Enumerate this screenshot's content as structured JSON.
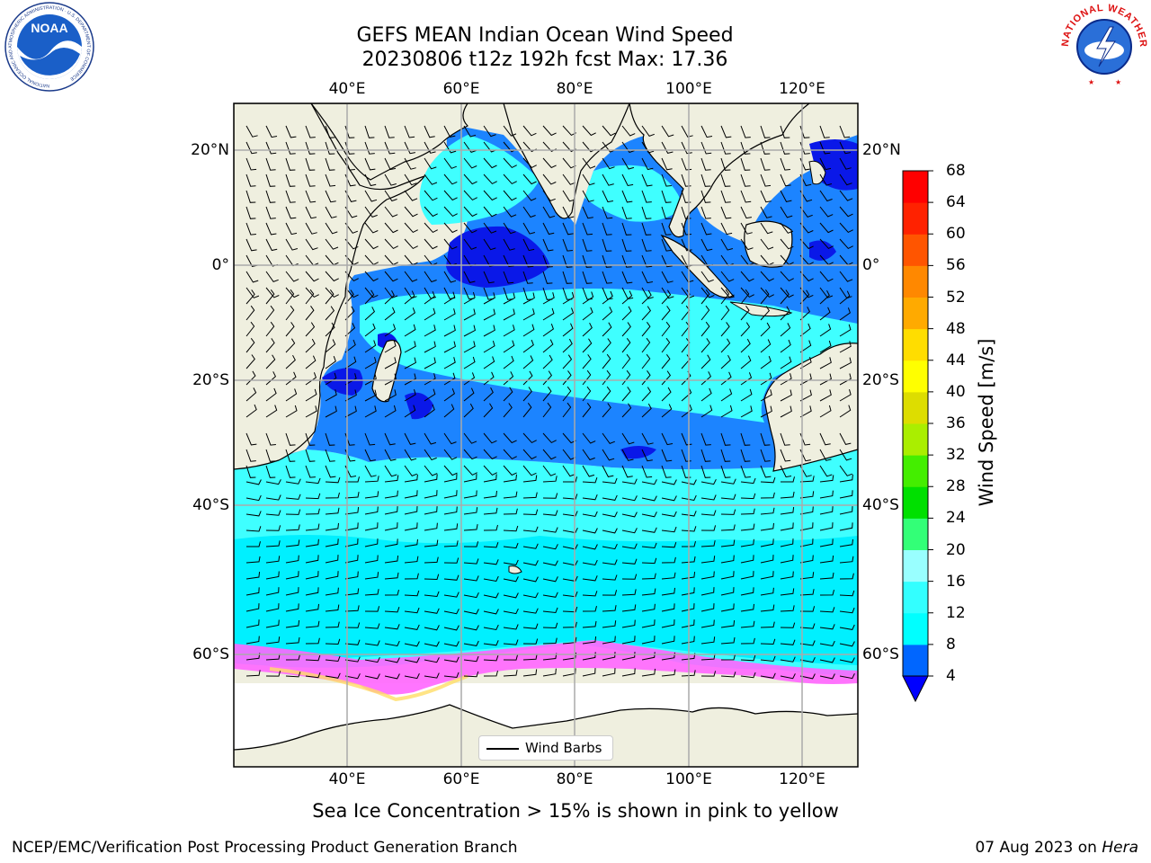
{
  "header": {
    "title_line1": "GEFS MEAN Indian Ocean Wind Speed",
    "title_line2": "20230806 t12z 192h fcst   Max: 17.36"
  },
  "logos": {
    "left_text": "NOAA",
    "left_ring_text": "NATIONAL OCEANIC AND ATMOSPHERIC ADMINISTRATION · U.S. DEPARTMENT OF COMMERCE",
    "right_ring_text": "NATIONAL WEATHER SERVICE"
  },
  "map": {
    "top_lon_ticks": [
      "40°E",
      "60°E",
      "80°E",
      "100°E",
      "120°E"
    ],
    "bottom_lon_ticks": [
      "40°E",
      "60°E",
      "80°E",
      "100°E",
      "120°E"
    ],
    "left_lat_ticks": [
      "20°N",
      "0°",
      "20°S",
      "40°S",
      "60°S"
    ],
    "right_lat_ticks": [
      "20°N",
      "0°",
      "20°S",
      "40°S",
      "60°S"
    ],
    "extent": {
      "lon": [
        20,
        130
      ],
      "lat": [
        -70,
        28
      ]
    },
    "colors": {
      "land": "#efefdf",
      "ocean_4_8": "#1c84ff",
      "ocean_dark": "#0a18e8",
      "ocean_8_12": "#00f0ff",
      "ocean_12_16": "#3fffff",
      "ice": "#ff66ff"
    }
  },
  "legend": {
    "label": "Wind Barbs"
  },
  "colorbar": {
    "label": "Wind Speed [m/s]",
    "ticks": [
      "68",
      "64",
      "60",
      "56",
      "52",
      "48",
      "44",
      "40",
      "36",
      "32",
      "28",
      "24",
      "20",
      "16",
      "12",
      "8",
      "4"
    ],
    "colors": [
      "#0066ff",
      "#00ffff",
      "#33ffff",
      "#99ffff",
      "#33ff77",
      "#00e000",
      "#44ee00",
      "#aaee00",
      "#dddd00",
      "#ffff00",
      "#ffdd00",
      "#ffaa00",
      "#ff8800",
      "#ff5500",
      "#ff2200",
      "#ff0000"
    ],
    "underflow_color": "#0000ff"
  },
  "footer": {
    "note": "Sea Ice Concentration > 15% is shown in pink to yellow",
    "credit": "NCEP/EMC/Verification Post Processing Product Generation Branch",
    "date": "07 Aug 2023 on",
    "machine": "Hera"
  }
}
